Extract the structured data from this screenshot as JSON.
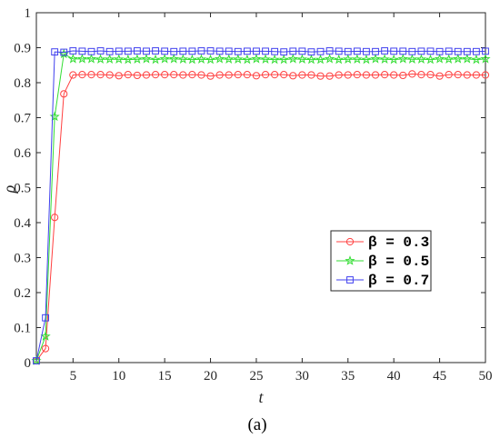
{
  "chart_data": {
    "type": "line",
    "caption": "(a)",
    "xlabel": "t",
    "ylabel": "ρ",
    "xlim": [
      1,
      50
    ],
    "ylim": [
      0,
      1
    ],
    "xticks": [
      5,
      10,
      15,
      20,
      25,
      30,
      35,
      40,
      45,
      50
    ],
    "yticks": [
      0,
      0.1,
      0.2,
      0.3,
      0.4,
      0.5,
      0.6,
      0.7,
      0.8,
      0.9,
      1
    ],
    "ytick_labels": [
      "0",
      "0.1",
      "0.2",
      "0.3",
      "0.4",
      "0.5",
      "0.6",
      "0.7",
      "0.8",
      "0.9",
      "1"
    ],
    "grid": false,
    "legend_position": "lower-right",
    "x": [
      1,
      2,
      3,
      4,
      5,
      6,
      7,
      8,
      9,
      10,
      11,
      12,
      13,
      14,
      15,
      16,
      17,
      18,
      19,
      20,
      21,
      22,
      23,
      24,
      25,
      26,
      27,
      28,
      29,
      30,
      31,
      32,
      33,
      34,
      35,
      36,
      37,
      38,
      39,
      40,
      41,
      42,
      43,
      44,
      45,
      46,
      47,
      48,
      49,
      50
    ],
    "series": [
      {
        "name": "β = 0.3",
        "color": "#ff4040",
        "marker": "circle",
        "values": [
          0.005,
          0.04,
          0.415,
          0.768,
          0.822,
          0.823,
          0.823,
          0.823,
          0.822,
          0.82,
          0.823,
          0.821,
          0.822,
          0.823,
          0.823,
          0.823,
          0.822,
          0.823,
          0.822,
          0.819,
          0.822,
          0.822,
          0.823,
          0.823,
          0.82,
          0.823,
          0.823,
          0.823,
          0.82,
          0.822,
          0.822,
          0.819,
          0.819,
          0.822,
          0.822,
          0.823,
          0.822,
          0.822,
          0.823,
          0.822,
          0.821,
          0.825,
          0.823,
          0.823,
          0.819,
          0.823,
          0.823,
          0.822,
          0.822,
          0.822
        ]
      },
      {
        "name": "β = 0.5",
        "color": "#33dd33",
        "marker": "star",
        "values": [
          0.005,
          0.075,
          0.703,
          0.882,
          0.868,
          0.868,
          0.868,
          0.867,
          0.867,
          0.867,
          0.866,
          0.867,
          0.868,
          0.866,
          0.868,
          0.868,
          0.867,
          0.866,
          0.867,
          0.866,
          0.868,
          0.867,
          0.867,
          0.866,
          0.868,
          0.867,
          0.866,
          0.866,
          0.868,
          0.867,
          0.866,
          0.866,
          0.868,
          0.866,
          0.867,
          0.867,
          0.866,
          0.868,
          0.867,
          0.866,
          0.868,
          0.867,
          0.867,
          0.866,
          0.868,
          0.867,
          0.868,
          0.868,
          0.866,
          0.868
        ]
      },
      {
        "name": "β = 0.7",
        "color": "#4040ee",
        "marker": "square",
        "values": [
          0.005,
          0.128,
          0.888,
          0.887,
          0.891,
          0.89,
          0.889,
          0.891,
          0.889,
          0.89,
          0.89,
          0.891,
          0.89,
          0.891,
          0.89,
          0.889,
          0.89,
          0.89,
          0.891,
          0.891,
          0.89,
          0.89,
          0.889,
          0.89,
          0.89,
          0.89,
          0.889,
          0.888,
          0.89,
          0.89,
          0.888,
          0.889,
          0.891,
          0.89,
          0.889,
          0.89,
          0.889,
          0.889,
          0.891,
          0.89,
          0.89,
          0.889,
          0.89,
          0.89,
          0.889,
          0.89,
          0.889,
          0.889,
          0.889,
          0.89
        ]
      }
    ]
  }
}
